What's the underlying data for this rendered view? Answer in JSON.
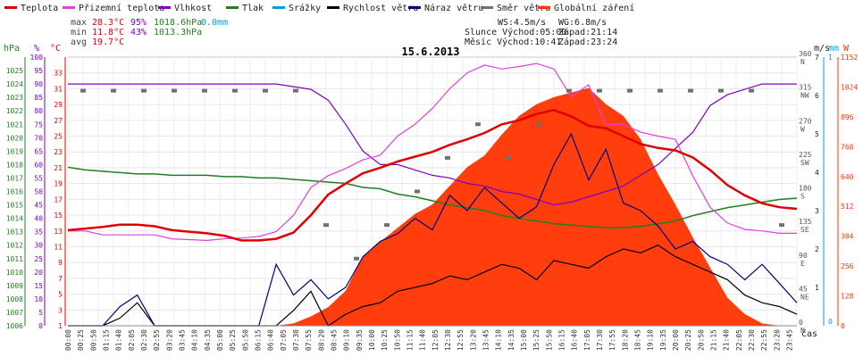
{
  "chart_data": {
    "type": "line",
    "title": "15.6.2013",
    "xlabel": "čas",
    "legend": {
      "placement": "top",
      "items": [
        {
          "label": "Teplota",
          "color": "#e00000"
        },
        {
          "label": "Přizemní teplota",
          "color": "#e040e0"
        },
        {
          "label": "Vlhkost",
          "color": "#8000c0"
        },
        {
          "label": "Tlak",
          "color": "#208020"
        },
        {
          "label": "Srážky",
          "color": "#00a0e0"
        },
        {
          "label": "Rychlost větru",
          "color": "#000000"
        },
        {
          "label": "Náraz větru",
          "color": "#000080"
        },
        {
          "label": "Směr větru",
          "color": "#707070"
        },
        {
          "label": "Globální záření",
          "color": "#ff3300"
        }
      ]
    },
    "stats": {
      "max": {
        "label": "max",
        "temp": "28.3°C",
        "humidity": "95%",
        "pressure": "1018.6hPa",
        "rain": "0.0mm"
      },
      "min": {
        "label": "min",
        "temp": "11.8°C",
        "humidity": "43%",
        "pressure": "1013.3hPa"
      },
      "avg": {
        "label": "avg",
        "temp": "19.7°C"
      }
    },
    "info": {
      "ws": "WS:4.5m/s",
      "wg": "WG:6.8m/s",
      "sun": "Slunce Východ:05:00",
      "sun_set": "Západ:21:14",
      "moon": "Měsíc Východ:10:41",
      "moon_set": "Západ:23:24"
    },
    "axes": {
      "pressure": {
        "label": "hPa",
        "range": [
          1006,
          1026
        ],
        "ticks": [
          "1006",
          "1007",
          "1008",
          "1009",
          "1010",
          "1011",
          "1012",
          "1013",
          "1014",
          "1015",
          "1016",
          "1017",
          "1018",
          "1019",
          "1020",
          "1021",
          "1022",
          "1023",
          "1024",
          "1025"
        ]
      },
      "humidity": {
        "label": "%",
        "range": [
          0,
          100
        ],
        "ticks": [
          "0",
          "5",
          "10",
          "15",
          "20",
          "25",
          "30",
          "35",
          "40",
          "45",
          "50",
          "55",
          "60",
          "65",
          "70",
          "75",
          "80",
          "85",
          "90",
          "95",
          "100"
        ]
      },
      "temperature": {
        "label": "°C",
        "range": [
          1,
          35
        ],
        "ticks": [
          "1",
          "3",
          "5",
          "7",
          "9",
          "11",
          "13",
          "15",
          "17",
          "19",
          "21",
          "23",
          "25",
          "27",
          "29",
          "31",
          "33"
        ]
      },
      "direction": {
        "label": "",
        "ticks": [
          {
            "value": "0",
            "dir": "N"
          },
          {
            "value": "45",
            "dir": "NE"
          },
          {
            "value": "90",
            "dir": "E"
          },
          {
            "value": "135",
            "dir": "SE"
          },
          {
            "value": "180",
            "dir": "S"
          },
          {
            "value": "225",
            "dir": "SW"
          },
          {
            "value": "270",
            "dir": "W"
          },
          {
            "value": "315",
            "dir": "NW"
          },
          {
            "value": "360",
            "dir": "N"
          }
        ]
      },
      "wind": {
        "label": "m/s",
        "range": [
          0,
          7
        ],
        "ticks": [
          "1",
          "2",
          "3",
          "4",
          "5",
          "6",
          "7"
        ]
      },
      "rain": {
        "label": "mm",
        "ticks": [
          "0",
          "1"
        ]
      },
      "radiation": {
        "label": "W",
        "range": [
          0,
          1152
        ],
        "ticks": [
          "0",
          "128",
          "256",
          "384",
          "512",
          "640",
          "768",
          "896",
          "1024",
          "1152"
        ]
      }
    },
    "x_ticks": [
      "00:00",
      "00:25",
      "00:50",
      "01:15",
      "01:40",
      "02:05",
      "02:30",
      "02:55",
      "03:20",
      "03:45",
      "04:10",
      "04:35",
      "05:00",
      "05:25",
      "05:50",
      "06:15",
      "06:40",
      "07:05",
      "07:30",
      "07:55",
      "08:20",
      "08:45",
      "09:10",
      "09:35",
      "10:00",
      "10:25",
      "10:50",
      "11:15",
      "11:40",
      "12:05",
      "12:30",
      "12:55",
      "13:20",
      "13:45",
      "14:10",
      "14:35",
      "15:00",
      "15:25",
      "15:50",
      "16:15",
      "16:40",
      "17:05",
      "17:30",
      "17:55",
      "18:20",
      "18:45",
      "19:10",
      "19:35",
      "20:00",
      "20:25",
      "20:50",
      "21:15",
      "21:40",
      "22:05",
      "22:30",
      "22:55",
      "23:20",
      "23:45"
    ],
    "x_hours": [
      0,
      0.5,
      1,
      1.5,
      2,
      2.5,
      3,
      3.5,
      4,
      4.5,
      5,
      5.5,
      6,
      6.5,
      7,
      7.5,
      8,
      8.5,
      9,
      9.5,
      10,
      10.5,
      11,
      11.5,
      12,
      12.5,
      13,
      13.5,
      14,
      14.5,
      15,
      15.5,
      16,
      16.5,
      17,
      17.5,
      18,
      18.5,
      19,
      19.5,
      20,
      20.5,
      21,
      21.5,
      22,
      22.5,
      23,
      23.5,
      24
    ],
    "series": [
      {
        "name": "Teplota",
        "axis": "temperature",
        "values": [
          13.1,
          13.3,
          13.5,
          13.8,
          13.8,
          13.6,
          13.1,
          12.9,
          12.7,
          12.4,
          11.8,
          11.8,
          12.0,
          12.8,
          15.0,
          17.6,
          19.0,
          20.3,
          21.0,
          21.8,
          22.4,
          23.0,
          23.9,
          24.6,
          25.4,
          26.5,
          27.0,
          27.8,
          28.3,
          27.5,
          26.3,
          26.0,
          25.0,
          24.0,
          23.5,
          23.2,
          22.3,
          20.7,
          18.8,
          17.5,
          16.5,
          16.0,
          15.8
        ]
      },
      {
        "name": "Přizemní teplota",
        "axis": "temperature",
        "values": [
          13.0,
          13.0,
          12.5,
          12.5,
          12.5,
          12.5,
          12.0,
          11.9,
          11.8,
          12.0,
          12.1,
          12.3,
          12.9,
          15.0,
          18.5,
          20.0,
          20.9,
          22.0,
          22.6,
          25.0,
          26.5,
          28.5,
          31.0,
          33.0,
          34.0,
          33.5,
          33.8,
          34.2,
          33.5,
          30.0,
          31.5,
          26.5,
          26.5,
          25.5,
          25.0,
          24.6,
          20.0,
          16.0,
          14.0,
          13.2,
          13.0,
          12.7,
          12.7
        ]
      },
      {
        "name": "Vlhkost",
        "axis": "humidity",
        "values": [
          90,
          90,
          90,
          90,
          90,
          90,
          90,
          90,
          90,
          90,
          90,
          90,
          90,
          89,
          88,
          84,
          75,
          65,
          60,
          60,
          58,
          56,
          55,
          53,
          52,
          50,
          49,
          47,
          45,
          46,
          48,
          50,
          52,
          56,
          60,
          66,
          72,
          82,
          86,
          88,
          90,
          90,
          90
        ]
      },
      {
        "name": "Tlak",
        "axis": "pressure",
        "values": [
          1017.8,
          1017.6,
          1017.5,
          1017.4,
          1017.3,
          1017.3,
          1017.2,
          1017.2,
          1017.2,
          1017.1,
          1017.1,
          1017.0,
          1017.0,
          1016.9,
          1016.8,
          1016.7,
          1016.6,
          1016.3,
          1016.2,
          1015.8,
          1015.6,
          1015.3,
          1015.0,
          1014.8,
          1014.6,
          1014.2,
          1014.0,
          1013.8,
          1013.6,
          1013.5,
          1013.4,
          1013.3,
          1013.3,
          1013.4,
          1013.6,
          1013.8,
          1014.2,
          1014.5,
          1014.8,
          1015.0,
          1015.2,
          1015.4,
          1015.5
        ]
      },
      {
        "name": "Rychlost větru",
        "axis": "wind",
        "values": [
          0,
          0,
          0,
          0.2,
          0.6,
          0,
          0,
          0,
          0,
          0,
          0,
          0,
          0,
          0.4,
          0.9,
          0,
          0.3,
          0.5,
          0.6,
          0.9,
          1.0,
          1.1,
          1.3,
          1.2,
          1.4,
          1.6,
          1.5,
          1.2,
          1.7,
          1.6,
          1.5,
          1.8,
          2.0,
          1.9,
          2.1,
          1.8,
          1.6,
          1.4,
          1.2,
          0.8,
          0.6,
          0.5,
          0.3
        ]
      },
      {
        "name": "Náraz větru",
        "axis": "wind",
        "values": [
          0,
          0,
          0,
          0.5,
          0.8,
          0,
          0,
          0,
          0,
          0,
          0,
          0,
          1.6,
          0.8,
          1.2,
          0.7,
          1.0,
          1.8,
          2.2,
          2.4,
          2.8,
          2.5,
          3.4,
          3.0,
          3.6,
          3.2,
          2.8,
          3.1,
          4.2,
          5.0,
          3.8,
          4.6,
          3.2,
          3.0,
          2.6,
          2.0,
          2.2,
          1.8,
          1.6,
          1.2,
          1.6,
          1.1,
          0.6
        ]
      },
      {
        "name": "Globální záření",
        "axis": "radiation",
        "values": [
          0,
          0,
          0,
          0,
          0,
          0,
          0,
          0,
          0,
          0,
          0,
          0,
          0,
          10,
          40,
          80,
          150,
          300,
          360,
          420,
          480,
          520,
          600,
          680,
          730,
          820,
          900,
          950,
          980,
          1000,
          1020,
          950,
          900,
          800,
          650,
          520,
          380,
          250,
          120,
          50,
          10,
          0,
          0
        ]
      }
    ],
    "wind_direction": {
      "name": "Směr větru",
      "axis": "direction",
      "unit": "deg",
      "hours": [
        0,
        1,
        2,
        3,
        4,
        5,
        6,
        7,
        8,
        9,
        10,
        11,
        12,
        13,
        14,
        15,
        16,
        17,
        18,
        19,
        20,
        21,
        22,
        23
      ],
      "values": [
        315,
        315,
        315,
        315,
        315,
        315,
        315,
        315,
        135,
        90,
        135,
        180,
        225,
        270,
        225,
        270,
        315,
        315,
        315,
        315,
        315,
        315,
        315,
        135
      ]
    }
  }
}
